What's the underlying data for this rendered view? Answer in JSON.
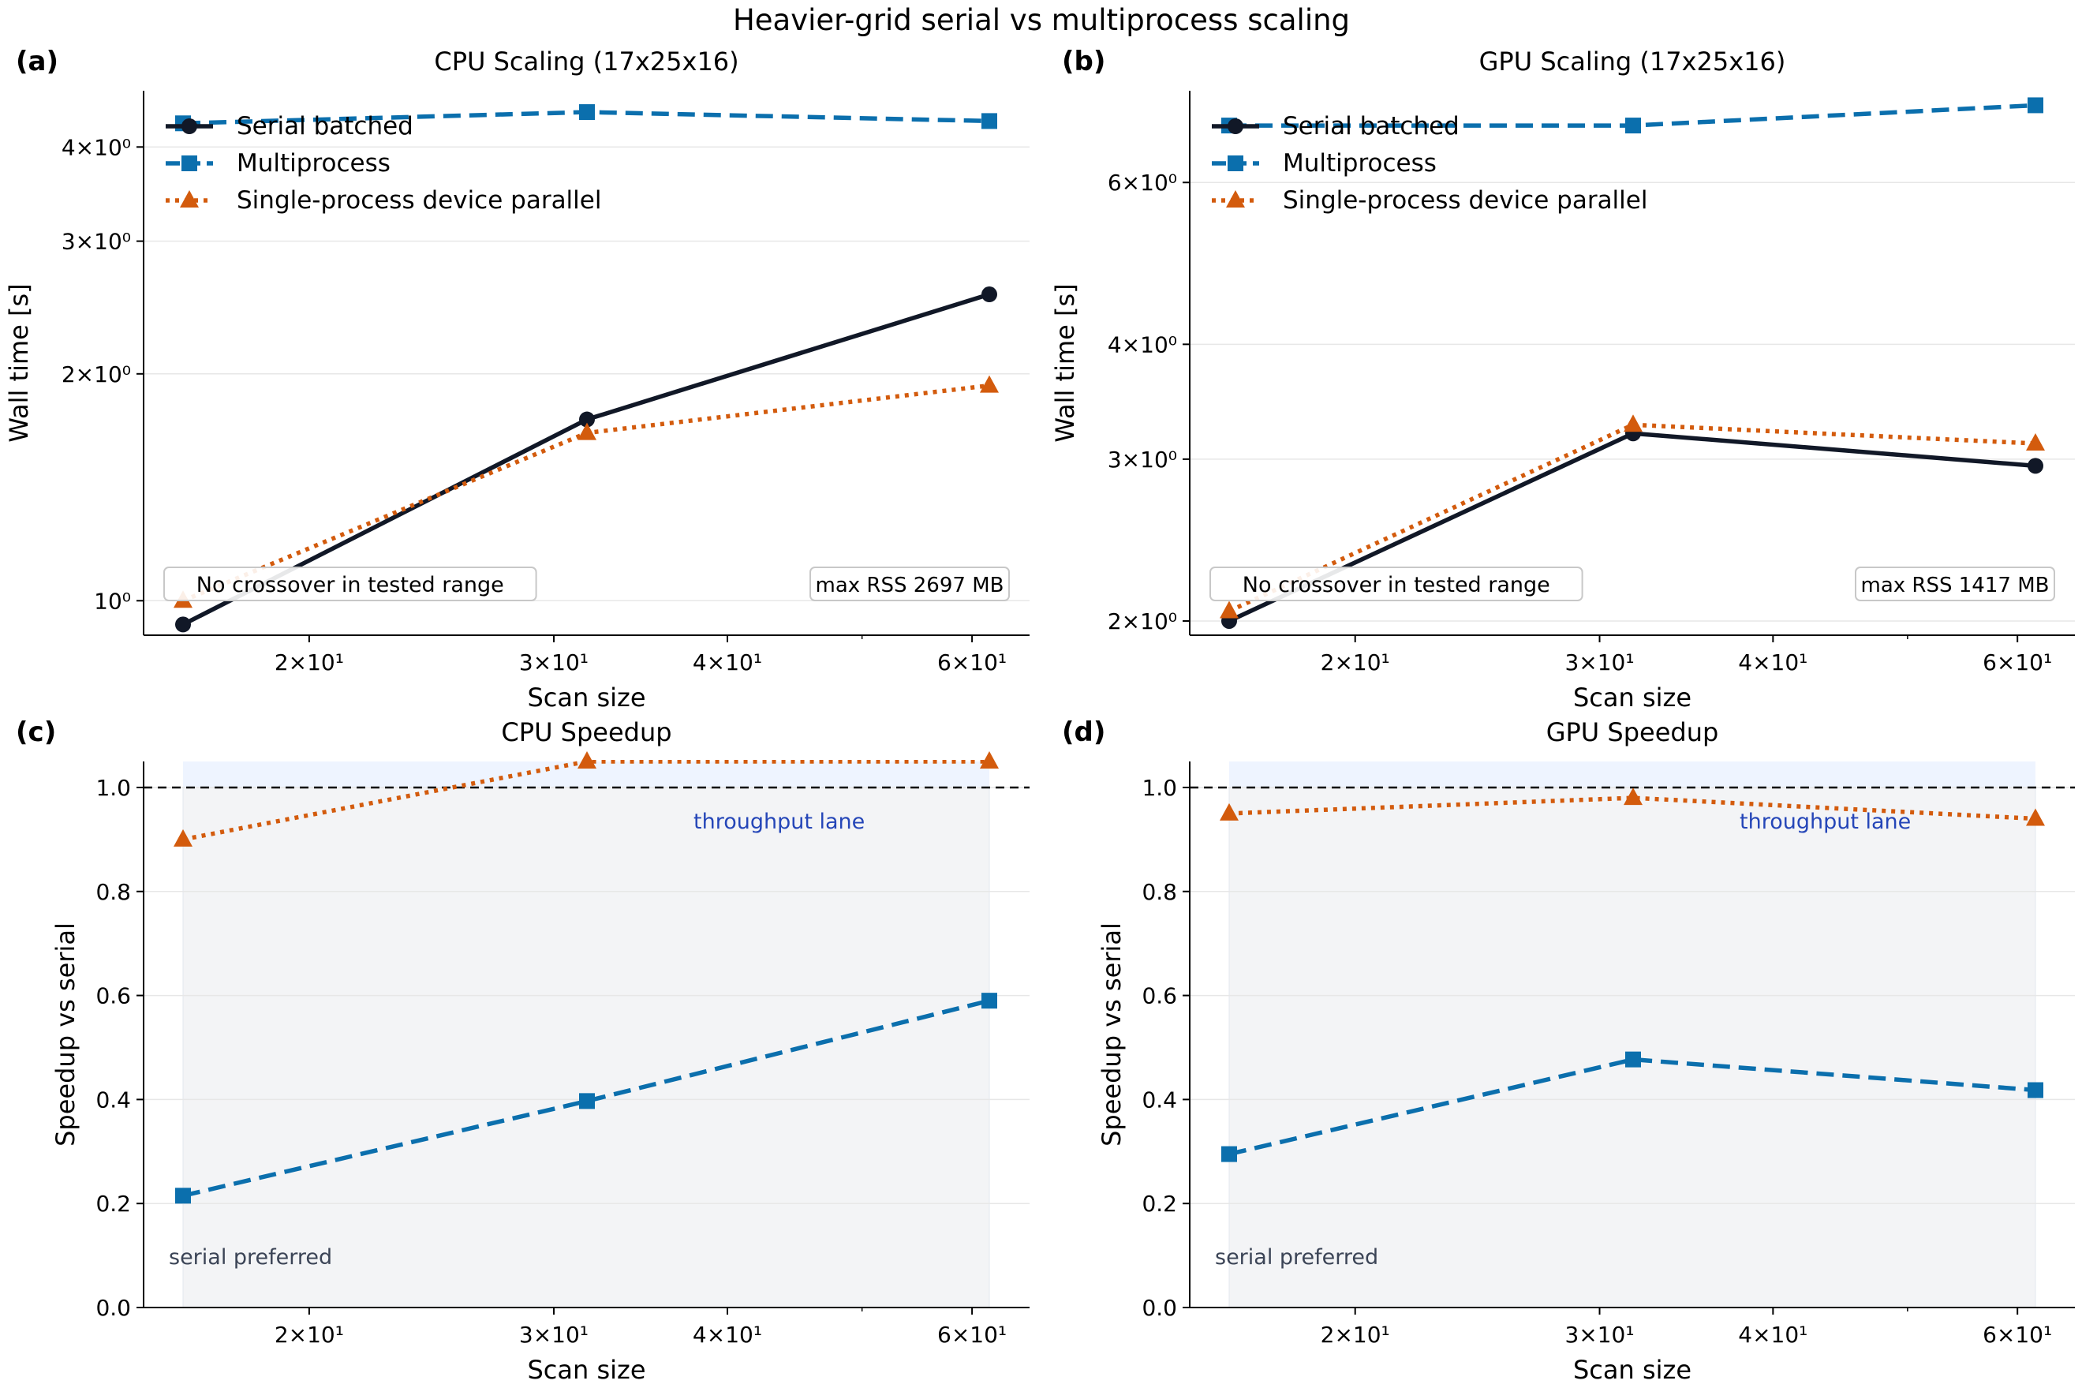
{
  "figure": {
    "title": "Heavier-grid serial vs multiprocess scaling"
  },
  "colors": {
    "serial": "#111827",
    "multiprocess": "#0b6fad",
    "device_parallel": "#d35b0d",
    "throughput_label": "#2546b8",
    "serial_pref_label": "#3b4456",
    "serial_region": "#f3f4f6",
    "throughput_region": "#eef4ff"
  },
  "chart_data": [
    {
      "panel_label": "(a)",
      "type": "line",
      "title": "CPU Scaling (17x25x16)",
      "xlabel": "Scan size",
      "ylabel": "Wall time [s]",
      "xscale": "log",
      "yscale": "log",
      "xlim": [
        15.2,
        66
      ],
      "ylim": [
        0.9,
        4.75
      ],
      "xticks": [
        {
          "value": 20,
          "label": "2×10¹"
        },
        {
          "value": 30,
          "label": "3×10¹"
        },
        {
          "value": 40,
          "label": "4×10¹"
        },
        {
          "value": 60,
          "label": "6×10¹"
        }
      ],
      "yticks": [
        {
          "value": 1,
          "label": "10⁰"
        },
        {
          "value": 2,
          "label": "2×10⁰"
        },
        {
          "value": 3,
          "label": "3×10⁰"
        },
        {
          "value": 4,
          "label": "4×10⁰"
        }
      ],
      "x": [
        16,
        32,
        64
      ],
      "series": [
        {
          "name": "Serial batched",
          "key": "serial",
          "values": [
            0.93,
            1.74,
            2.55
          ]
        },
        {
          "name": "Multiprocess",
          "key": "multiprocess",
          "values": [
            4.3,
            4.45,
            4.33
          ]
        },
        {
          "name": "Single-process device parallel",
          "key": "device_parallel",
          "values": [
            1.0,
            1.67,
            1.93
          ]
        }
      ],
      "legend": "top-left",
      "annotations": [
        {
          "text": "No crossover in tested range",
          "position": "bottom-left"
        },
        {
          "text": "max RSS 2697 MB",
          "position": "bottom-right"
        }
      ]
    },
    {
      "panel_label": "(b)",
      "type": "line",
      "title": "GPU Scaling (17x25x16)",
      "xlabel": "Scan size",
      "ylabel": "Wall time [s]",
      "xscale": "log",
      "yscale": "log",
      "xlim": [
        15.2,
        66
      ],
      "ylim": [
        1.93,
        7.55
      ],
      "xticks": [
        {
          "value": 20,
          "label": "2×10¹"
        },
        {
          "value": 30,
          "label": "3×10¹"
        },
        {
          "value": 40,
          "label": "4×10¹"
        },
        {
          "value": 60,
          "label": "6×10¹"
        }
      ],
      "yticks": [
        {
          "value": 2,
          "label": "2×10⁰"
        },
        {
          "value": 3,
          "label": "3×10⁰"
        },
        {
          "value": 4,
          "label": "4×10⁰"
        },
        {
          "value": 6,
          "label": "6×10⁰"
        }
      ],
      "x": [
        16,
        32,
        64
      ],
      "series": [
        {
          "name": "Serial batched",
          "key": "serial",
          "values": [
            2.0,
            3.2,
            2.95
          ]
        },
        {
          "name": "Multiprocess",
          "key": "multiprocess",
          "values": [
            6.92,
            6.92,
            7.28
          ]
        },
        {
          "name": "Single-process device parallel",
          "key": "device_parallel",
          "values": [
            2.05,
            3.27,
            3.12
          ]
        }
      ],
      "legend": "top-left",
      "annotations": [
        {
          "text": "No crossover in tested range",
          "position": "bottom-left"
        },
        {
          "text": "max RSS 1417 MB",
          "position": "bottom-right"
        }
      ]
    },
    {
      "panel_label": "(c)",
      "type": "line",
      "title": "CPU Speedup",
      "xlabel": "Scan size",
      "ylabel": "Speedup vs serial",
      "xscale": "log",
      "yscale": "linear",
      "xlim": [
        15.2,
        66
      ],
      "ylim": [
        0,
        1.05
      ],
      "xticks": [
        {
          "value": 20,
          "label": "2×10¹"
        },
        {
          "value": 30,
          "label": "3×10¹"
        },
        {
          "value": 40,
          "label": "4×10¹"
        },
        {
          "value": 60,
          "label": "6×10¹"
        }
      ],
      "yticks": [
        {
          "value": 0,
          "label": "0.0"
        },
        {
          "value": 0.2,
          "label": "0.2"
        },
        {
          "value": 0.4,
          "label": "0.4"
        },
        {
          "value": 0.6,
          "label": "0.6"
        },
        {
          "value": 0.8,
          "label": "0.8"
        },
        {
          "value": 1.0,
          "label": "1.0"
        }
      ],
      "x": [
        16,
        32,
        64
      ],
      "series": [
        {
          "key": "multiprocess",
          "values": [
            0.215,
            0.397,
            0.59
          ]
        },
        {
          "key": "device_parallel",
          "values": [
            0.9,
            1.05,
            1.05
          ]
        }
      ],
      "reference_line": 1.0,
      "regions": [
        {
          "label": "serial preferred",
          "y_range": [
            0,
            1.0
          ]
        },
        {
          "label": "throughput lane",
          "y_range": [
            1.0,
            1.05
          ]
        }
      ]
    },
    {
      "panel_label": "(d)",
      "type": "line",
      "title": "GPU Speedup",
      "xlabel": "Scan size",
      "ylabel": "Speedup vs serial",
      "xscale": "log",
      "yscale": "linear",
      "xlim": [
        15.2,
        66
      ],
      "ylim": [
        0,
        1.05
      ],
      "xticks": [
        {
          "value": 20,
          "label": "2×10¹"
        },
        {
          "value": 30,
          "label": "3×10¹"
        },
        {
          "value": 40,
          "label": "4×10¹"
        },
        {
          "value": 60,
          "label": "6×10¹"
        }
      ],
      "yticks": [
        {
          "value": 0,
          "label": "0.0"
        },
        {
          "value": 0.2,
          "label": "0.2"
        },
        {
          "value": 0.4,
          "label": "0.4"
        },
        {
          "value": 0.6,
          "label": "0.6"
        },
        {
          "value": 0.8,
          "label": "0.8"
        },
        {
          "value": 1.0,
          "label": "1.0"
        }
      ],
      "x": [
        16,
        32,
        64
      ],
      "series": [
        {
          "key": "multiprocess",
          "values": [
            0.295,
            0.477,
            0.418
          ]
        },
        {
          "key": "device_parallel",
          "values": [
            0.95,
            0.98,
            0.94
          ]
        }
      ],
      "reference_line": 1.0,
      "regions": [
        {
          "label": "serial preferred",
          "y_range": [
            0,
            1.0
          ]
        },
        {
          "label": "throughput lane",
          "y_range": [
            1.0,
            1.05
          ]
        }
      ]
    }
  ]
}
